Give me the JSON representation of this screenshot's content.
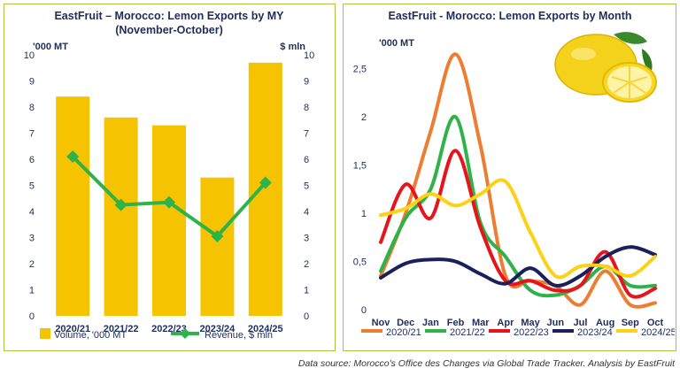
{
  "source_note": "Data source: Morocco's Office des Changes via Global Trade Tracker. Analysis by EastFruit",
  "colors": {
    "frame": "#a9c23f",
    "bar": "#f5c300",
    "revenue": "#2db34a"
  },
  "image": {
    "icon_name": "lemon-image"
  },
  "chart_data": [
    {
      "type": "bar",
      "title_line1": "EastFruit – Morocco: Lemon Exports by MY",
      "title_line2": "(November-October)",
      "ylabel_left": "'000 MT",
      "ylabel_right": "$ mln",
      "ylim": [
        0,
        10
      ],
      "yticks": [
        "0",
        "1",
        "2",
        "3",
        "4",
        "5",
        "6",
        "7",
        "8",
        "9",
        "10"
      ],
      "categories": [
        "2020/21",
        "2021/22",
        "2022/23",
        "2023/24",
        "2024/25"
      ],
      "series": [
        {
          "name": "Volume, '000 MT",
          "kind": "bar",
          "color": "#f5c300",
          "values": [
            8.4,
            7.6,
            7.3,
            5.3,
            9.7
          ]
        },
        {
          "name": "Revenue, $ mln",
          "kind": "line",
          "color": "#2db34a",
          "values": [
            6.1,
            4.25,
            4.35,
            3.05,
            5.1
          ]
        }
      ],
      "legend_position": "bottom",
      "grid": false
    },
    {
      "type": "line",
      "title": "EastFruit - Morocco: Lemon Exports by Month",
      "ylabel": "'000 MT",
      "ylim": [
        0,
        2.8
      ],
      "yticks": [
        "0",
        "0,5",
        "1",
        "1,5",
        "2",
        "2,5"
      ],
      "categories": [
        "Nov",
        "Dec",
        "Jan",
        "Feb",
        "Mar",
        "Apr",
        "May",
        "Jun",
        "Jul",
        "Aug",
        "Sep",
        "Oct"
      ],
      "series": [
        {
          "name": "2020/21",
          "color": "#ed7d31",
          "values": [
            0.35,
            1.0,
            1.85,
            2.65,
            1.7,
            0.35,
            0.3,
            0.25,
            0.05,
            0.4,
            0.05,
            0.07
          ]
        },
        {
          "name": "2021/22",
          "color": "#2db34a",
          "values": [
            0.4,
            0.95,
            1.25,
            2.0,
            0.9,
            0.55,
            0.2,
            0.15,
            0.25,
            0.45,
            0.25,
            0.25
          ]
        },
        {
          "name": "2022/23",
          "color": "#e8141b",
          "values": [
            0.7,
            1.3,
            0.95,
            1.65,
            0.85,
            0.3,
            0.3,
            0.2,
            0.25,
            0.6,
            0.15,
            0.22
          ]
        },
        {
          "name": "2023/24",
          "color": "#1b1f5a",
          "values": [
            0.33,
            0.48,
            0.52,
            0.5,
            0.37,
            0.27,
            0.43,
            0.25,
            0.35,
            0.55,
            0.65,
            0.57
          ]
        },
        {
          "name": "2024/25",
          "color": "#fcd116",
          "values": [
            0.98,
            1.05,
            1.2,
            1.08,
            1.2,
            1.33,
            0.8,
            0.35,
            0.45,
            0.45,
            0.35,
            0.55
          ]
        }
      ],
      "legend_position": "bottom",
      "grid": false
    }
  ]
}
